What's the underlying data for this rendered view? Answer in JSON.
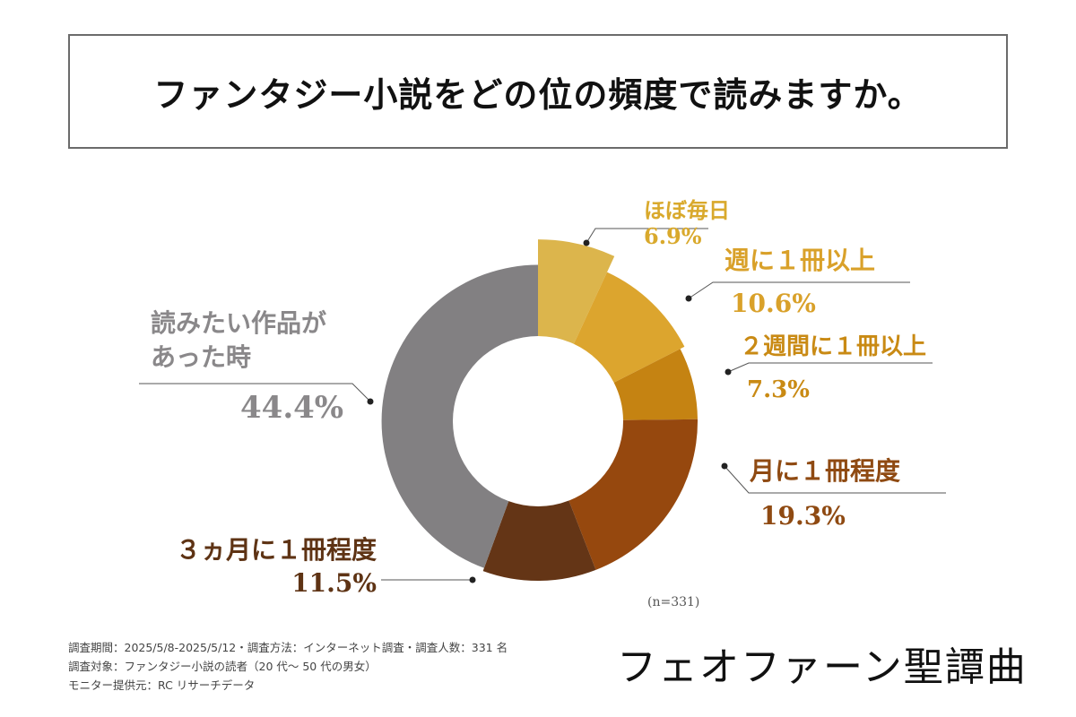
{
  "title": "ファンタジー小説をどの位の頻度で読みますか。",
  "chart_data": {
    "type": "pie",
    "variant": "donut",
    "title": "ファンタジー小説をどの位の頻度で読みますか。",
    "sample_note": "(n=331)",
    "unit": "%",
    "slices": [
      {
        "label_lines": [
          "ほぼ毎日"
        ],
        "value": 6.9,
        "value_label": "6.9%",
        "color": "#dcb54c",
        "label_color": "#d9a92c"
      },
      {
        "label_lines": [
          "週に１冊以上"
        ],
        "value": 10.6,
        "value_label": "10.6%",
        "color": "#dca52e",
        "label_color": "#d9a12a"
      },
      {
        "label_lines": [
          "２週間に１冊以上"
        ],
        "value": 7.3,
        "value_label": "7.3%",
        "color": "#c58312",
        "label_color": "#c98a14"
      },
      {
        "label_lines": [
          "月に１冊程度"
        ],
        "value": 19.3,
        "value_label": "19.3%",
        "color": "#96480e",
        "label_color": "#8f4a12"
      },
      {
        "label_lines": [
          "３ヵ月に１冊程度"
        ],
        "value": 11.5,
        "value_label": "11.5%",
        "color": "#643516",
        "label_color": "#5e3314"
      },
      {
        "label_lines": [
          "読みたい作品が",
          "あった時"
        ],
        "value": 44.4,
        "value_label": "44.4%",
        "color": "#828082",
        "label_color": "#8a888a"
      }
    ]
  },
  "footnotes": [
    "調査期間：2025/5/8-2025/5/12・調査方法：インターネット調査・調査人数：331 名",
    "調査対象：ファンタジー小説の読者（20 代〜 50 代の男女）",
    "モニター提供元：RC リサーチデータ"
  ],
  "logo_text": "フェオファーン聖譚曲"
}
